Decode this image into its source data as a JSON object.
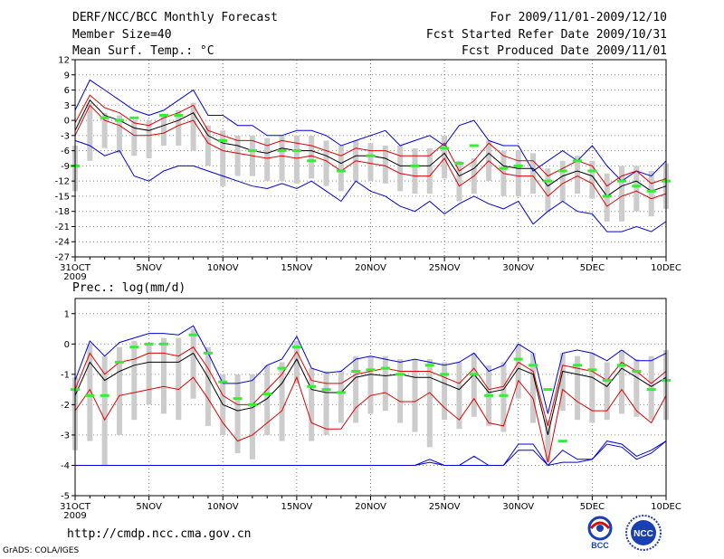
{
  "header": {
    "title": "DERF/NCC/BCC Monthly Forecast",
    "member_size": "Member Size=40",
    "variable1": "Mean Surf. Temp.: °C",
    "period": "For 2009/11/01-2009/12/10",
    "start_ref": "Fcst Started Refer Date 2009/10/31",
    "produced": "Fcst Produced Date 2009/11/01"
  },
  "footer": {
    "url": "http://cmdp.ncc.cma.gov.cn",
    "grads": "GrADS: COLA/IGES",
    "bcc_logo_text": "BCC",
    "ncc_logo_text": "NCC"
  },
  "colors": {
    "max_line": "#0000e0",
    "min_line": "#0000e0",
    "pct_line": "#e00000",
    "mean_line": "#000000",
    "box": "#cccccc",
    "obs_marker": "#33ee33",
    "grid": "#888888"
  },
  "chart_data": [
    {
      "type": "line",
      "panel": "temperature",
      "title": "",
      "ylabel": "Mean Surf. Temp.: °C",
      "ylim": [
        -27,
        12
      ],
      "yticks": [
        12,
        9,
        6,
        3,
        0,
        -3,
        -6,
        -9,
        -12,
        -15,
        -18,
        -21,
        -24,
        -27
      ],
      "xlim": [
        0,
        40
      ],
      "xticks": [
        {
          "x": 0,
          "label": "31OCT",
          "sub": "2009"
        },
        {
          "x": 5,
          "label": "5NOV"
        },
        {
          "x": 10,
          "label": "10NOV"
        },
        {
          "x": 15,
          "label": "15NOV"
        },
        {
          "x": 20,
          "label": "20NOV"
        },
        {
          "x": 25,
          "label": "25NOV"
        },
        {
          "x": 30,
          "label": "30NOV"
        },
        {
          "x": 35,
          "label": "5DEC"
        },
        {
          "x": 40,
          "label": "10DEC"
        }
      ],
      "series": [
        {
          "name": "max",
          "values": [
            2,
            8,
            6,
            4,
            2,
            1,
            2,
            4,
            6,
            1,
            1,
            -1,
            -1,
            -3,
            -3,
            -2,
            -2,
            -3,
            -5,
            -4,
            -3,
            -2,
            -5,
            -4,
            -3,
            -5,
            -1,
            0,
            -4,
            -5,
            -5,
            -10,
            -8,
            -6,
            -8,
            -5,
            -9,
            -12,
            -10,
            -11,
            -8
          ]
        },
        {
          "name": "pct90",
          "values": [
            -0.5,
            5,
            2.5,
            1.5,
            -0.5,
            -1,
            0.5,
            1.5,
            3,
            -2,
            -3,
            -4,
            -4,
            -5,
            -4,
            -4.5,
            -5,
            -6,
            -7,
            -5.5,
            -6,
            -6,
            -7,
            -7,
            -7,
            -4.5,
            -10,
            -8,
            -4.5,
            -7,
            -8,
            -8,
            -11,
            -9.5,
            -8,
            -9,
            -13,
            -11,
            -10,
            -12.5,
            -11.5
          ]
        },
        {
          "name": "mean",
          "values": [
            -2,
            4,
            1,
            0,
            -1.5,
            -2,
            -1,
            0,
            1.5,
            -3,
            -4.5,
            -5,
            -6,
            -6.5,
            -5.5,
            -6,
            -6,
            -7,
            -8.5,
            -7,
            -7,
            -7.5,
            -9,
            -9,
            -9,
            -6.5,
            -11,
            -9.5,
            -6.5,
            -9,
            -9.5,
            -9.5,
            -13,
            -11,
            -10,
            -11,
            -15,
            -13,
            -12,
            -14,
            -13
          ]
        },
        {
          "name": "pct10",
          "values": [
            -3,
            3,
            0,
            -1,
            -3,
            -3,
            -2.5,
            -1,
            0,
            -4.5,
            -6,
            -6.5,
            -7,
            -7.5,
            -7,
            -7.5,
            -7,
            -8,
            -10,
            -8,
            -8.5,
            -9,
            -10.5,
            -11,
            -11,
            -7.5,
            -13,
            -11,
            -8,
            -10.5,
            -11,
            -11,
            -15,
            -12.5,
            -11,
            -12.5,
            -17,
            -15,
            -14,
            -15.5,
            -14.5
          ]
        },
        {
          "name": "min",
          "values": [
            -4,
            -5,
            -7,
            -6,
            -11,
            -12,
            -10,
            -9,
            -9,
            -10,
            -11,
            -12,
            -13,
            -13.5,
            -12.5,
            -13.5,
            -12,
            -14,
            -16,
            -12,
            -14,
            -15,
            -17,
            -18,
            -16,
            -18.5,
            -16.5,
            -15,
            -16.5,
            -17.5,
            -16,
            -20.5,
            -18,
            -16,
            -18,
            -18.5,
            -22,
            -22,
            -21,
            -22,
            -20
          ]
        }
      ],
      "box_low": [
        -14,
        -8,
        -5.5,
        -6.5,
        -7,
        -7.5,
        -5,
        -5,
        -6,
        -9,
        -13,
        -11,
        -11,
        -12,
        -12,
        -12.5,
        -11.5,
        -13,
        -14,
        -12,
        -12,
        -12.5,
        -14,
        -14.5,
        -14.5,
        -11.5,
        -16,
        -14.5,
        -12,
        -15,
        -15,
        -14.5,
        -18,
        -16,
        -14.5,
        -15.5,
        -20,
        -20,
        -18,
        -19,
        -17.5
      ],
      "box_high": [
        -5,
        3.5,
        1.5,
        1,
        0,
        0,
        1,
        2,
        3.5,
        -1,
        -2,
        -3,
        -3,
        -3.5,
        -3,
        -3,
        -3,
        -4,
        -5,
        -4,
        -4.5,
        -5,
        -5,
        -5.5,
        -5.5,
        -3,
        -8,
        -7.5,
        -4,
        -6,
        -6,
        -6.5,
        -9.5,
        -8,
        -7,
        -8,
        -10.5,
        -9,
        -9,
        -10,
        -8.5
      ],
      "obs": [
        -9,
        null,
        0.5,
        0,
        0.5,
        null,
        1,
        1,
        null,
        null,
        -4,
        null,
        -6,
        null,
        -6,
        -6,
        -8,
        null,
        -10,
        null,
        -7,
        null,
        null,
        -9,
        null,
        -5.5,
        -8.5,
        -5,
        null,
        -9.5,
        -9,
        null,
        -12,
        -10,
        -8,
        -10,
        -15,
        -12,
        -13,
        -14,
        -12
      ]
    },
    {
      "type": "line",
      "panel": "precipitation",
      "title": "Prec.: log(mm/d)",
      "ylabel": "Prec.: log(mm/d)",
      "ylim": [
        -5,
        1.5
      ],
      "yticks": [
        1,
        0,
        -1,
        -2,
        -3,
        -4,
        -5
      ],
      "xlim": [
        0,
        40
      ],
      "xticks": [
        {
          "x": 0,
          "label": "31OCT",
          "sub": "2009"
        },
        {
          "x": 5,
          "label": "5NOV"
        },
        {
          "x": 10,
          "label": "10NOV"
        },
        {
          "x": 15,
          "label": "15NOV"
        },
        {
          "x": 20,
          "label": "20NOV"
        },
        {
          "x": 25,
          "label": "25NOV"
        },
        {
          "x": 30,
          "label": "30NOV"
        },
        {
          "x": 35,
          "label": "5DEC"
        },
        {
          "x": 40,
          "label": "10DEC"
        }
      ],
      "series": [
        {
          "name": "max",
          "values": [
            -1.2,
            0.1,
            -0.4,
            0.05,
            0.2,
            0.35,
            0.35,
            0.3,
            0.6,
            -0.3,
            -1.3,
            -1.3,
            -1.2,
            -0.7,
            -0.5,
            0.25,
            -0.8,
            -0.95,
            -0.9,
            -0.5,
            -0.4,
            -0.5,
            -0.6,
            -0.5,
            -0.6,
            -0.7,
            -0.6,
            -0.3,
            -0.9,
            -0.7,
            0,
            -0.3,
            -2.3,
            -0.3,
            -0.2,
            -0.3,
            -0.55,
            -0.2,
            -0.55,
            -0.55,
            -0.3
          ]
        },
        {
          "name": "pct90",
          "values": [
            -1.5,
            -0.3,
            -1,
            -0.6,
            -0.5,
            -0.3,
            -0.3,
            -0.4,
            -0.1,
            -0.8,
            -1.7,
            -2,
            -2,
            -1.5,
            -1,
            -0.25,
            -1.2,
            -1.3,
            -1.3,
            -1,
            -0.9,
            -0.8,
            -0.9,
            -0.9,
            -0.9,
            -1.1,
            -1.3,
            -0.8,
            -1.5,
            -1.4,
            -0.6,
            -0.9,
            -2.7,
            -0.7,
            -0.8,
            -0.9,
            -1.2,
            -0.6,
            -0.9,
            -1.3,
            -0.9
          ]
        },
        {
          "name": "mean",
          "values": [
            -1.7,
            -0.6,
            -1.2,
            -0.9,
            -0.7,
            -0.6,
            -0.6,
            -0.6,
            -0.3,
            -1.1,
            -2,
            -2.2,
            -2.1,
            -1.8,
            -1.3,
            -0.5,
            -1.5,
            -1.6,
            -1.6,
            -1.1,
            -1,
            -1.05,
            -1,
            -1.1,
            -1.1,
            -1.3,
            -1.5,
            -1,
            -1.6,
            -1.5,
            -0.8,
            -1,
            -3,
            -0.9,
            -1,
            -1.1,
            -1.4,
            -0.8,
            -1.1,
            -1.4,
            -1.1
          ]
        },
        {
          "name": "pct10",
          "values": [
            -2.2,
            -1.5,
            -2.5,
            -1.7,
            -1.6,
            -1.5,
            -1.4,
            -1.5,
            -1.1,
            -1.8,
            -2.6,
            -3.2,
            -3,
            -2.6,
            -2.2,
            -1.1,
            -2.6,
            -2.8,
            -2.8,
            -2.1,
            -1.7,
            -1.6,
            -1.9,
            -1.9,
            -1.6,
            -2.1,
            -2.5,
            -1.8,
            -2.6,
            -2.7,
            -1.2,
            -1.8,
            -3.9,
            -1.5,
            -1.9,
            -2.2,
            -2.2,
            -1.5,
            -2.2,
            -2.6,
            -1.7
          ]
        },
        {
          "name": "min",
          "values": [
            -4,
            -4,
            -4,
            -4,
            -4,
            -4,
            -4,
            -4,
            -4,
            -4,
            -4,
            -4,
            -4,
            -4,
            -4,
            -4,
            -4,
            -4,
            -4,
            -4,
            -4,
            -4,
            -4,
            -4,
            -3.8,
            -4,
            -4,
            -3.7,
            -4,
            -4,
            -3.3,
            -3.3,
            -4,
            -3.5,
            -3.8,
            -3.8,
            -3.2,
            -3.3,
            -3.7,
            -3.5,
            -3.2
          ]
        },
        {
          "name": "min_lower",
          "values": [
            -4,
            -4,
            -4,
            -4,
            -4,
            -4,
            -4,
            -4,
            -4,
            -4,
            -4,
            -4,
            -4,
            -4,
            -4,
            -4,
            -4,
            -4,
            -4,
            -4,
            -4,
            -4,
            -4,
            -4,
            -3.9,
            -4,
            -4,
            -4,
            -4,
            -4,
            -3.5,
            -3.5,
            -4,
            -3.9,
            -3.9,
            -3.8,
            -3.3,
            -3.4,
            -3.8,
            -3.6,
            -3.2
          ]
        }
      ],
      "box_low": [
        -3.5,
        -3.2,
        -4,
        -3,
        -2.5,
        -2,
        -2.3,
        -2.5,
        -1.8,
        -2.7,
        -3,
        -3.6,
        -3.8,
        -3,
        -3.2,
        -1.3,
        -3.2,
        -3,
        -2.6,
        -2.6,
        -2.3,
        -2.2,
        -2.6,
        -2.9,
        -3.4,
        -2.5,
        -2.8,
        -2.4,
        -2.7,
        -2.9,
        -1.8,
        -2.6,
        -3.9,
        -2.2,
        -2.5,
        -2.6,
        -2.5,
        -2.3,
        -2.4,
        -2.5,
        -2.5
      ],
      "box_high": [
        -1.1,
        0,
        -0.4,
        -0.1,
        0.1,
        0,
        0.2,
        0.2,
        0.5,
        -0.1,
        -1,
        -1,
        -1,
        -0.7,
        -0.6,
        0.1,
        -0.8,
        -0.9,
        -0.9,
        -0.4,
        -0.4,
        -0.4,
        -0.5,
        -0.5,
        -0.5,
        -0.6,
        -0.6,
        -0.3,
        -0.7,
        -0.6,
        0,
        -0.3,
        -2.5,
        -0.3,
        -0.4,
        -0.3,
        -0.6,
        -0.2,
        -0.5,
        -0.4,
        -0.2
      ],
      "obs": [
        -1.5,
        -1.7,
        -1.7,
        -0.6,
        -0.1,
        0,
        0,
        null,
        0.3,
        -0.3,
        -1.25,
        -1.8,
        -2,
        -1.65,
        -0.8,
        -0.1,
        -1.4,
        -1.5,
        -1.6,
        -0.9,
        -0.85,
        -0.8,
        -1,
        null,
        -0.7,
        -1,
        null,
        -1,
        -1.7,
        -1.7,
        -0.5,
        -0.7,
        -1.5,
        -3.2,
        -0.7,
        -0.85,
        -1.2,
        -0.7,
        -0.9,
        -1.5,
        -1.2
      ]
    }
  ]
}
